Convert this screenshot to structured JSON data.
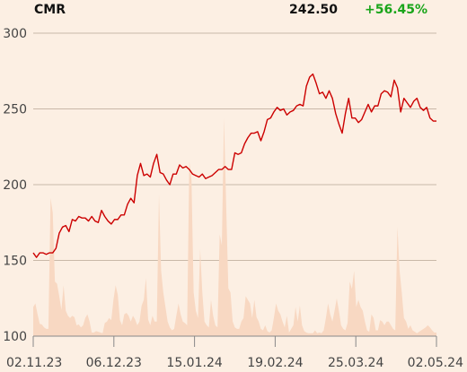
{
  "header": {
    "ticker": "CMR",
    "price": "242.50",
    "change": "+56.45%"
  },
  "colors": {
    "background": "#fcefe3",
    "line": "#cc0000",
    "volume": "#f8d8c2",
    "grid": "#c9b8a8",
    "change_positive": "#1aa51a"
  },
  "chart_data": {
    "type": "line",
    "title": "",
    "xlabel": "",
    "ylabel": "",
    "ylim": [
      100,
      300
    ],
    "yticks": [
      100,
      150,
      200,
      250,
      300
    ],
    "xticks": [
      "02.11.23",
      "06.12.23",
      "15.01.24",
      "19.02.24",
      "25.03.24",
      "02.05.24"
    ],
    "grid": "horizontal",
    "series": [
      {
        "values": [
          155,
          152,
          155,
          155,
          154,
          155,
          155,
          158,
          168,
          172,
          173,
          169,
          177,
          176,
          179,
          178,
          178,
          176,
          179,
          176,
          175,
          183,
          179,
          176,
          174,
          177,
          177,
          180,
          180,
          187,
          191,
          188,
          206,
          214,
          206,
          207,
          205,
          214,
          220,
          208,
          207,
          203,
          200,
          207,
          207,
          213,
          211,
          212,
          210,
          207,
          206,
          205,
          207,
          204,
          205,
          206,
          208,
          210,
          210,
          212,
          210,
          210,
          221,
          220,
          221,
          227,
          231,
          234,
          234,
          235,
          229,
          235,
          243,
          244,
          248,
          251,
          249,
          250,
          246,
          248,
          249,
          252,
          253,
          252,
          265,
          271,
          273,
          267,
          260,
          261,
          257,
          262,
          257,
          247,
          240,
          234,
          247,
          257,
          244,
          244,
          241,
          243,
          248,
          253,
          248,
          252,
          252,
          260,
          262,
          261,
          258,
          269,
          264,
          248,
          257,
          254,
          251,
          255,
          257,
          251,
          249,
          251,
          244,
          242,
          242
        ]
      }
    ],
    "volume": {
      "values": [
        40,
        45,
        30,
        17,
        16,
        12,
        10,
        10,
        190,
        170,
        75,
        72,
        55,
        36,
        70,
        35,
        28,
        25,
        28,
        26,
        15,
        16,
        12,
        15,
        25,
        30,
        20,
        5,
        5,
        7,
        6,
        5,
        4,
        18,
        20,
        25,
        22,
        50,
        70,
        57,
        22,
        15,
        30,
        32,
        28,
        20,
        28,
        23,
        15,
        20,
        42,
        50,
        80,
        23,
        15,
        28,
        20,
        20,
        195,
        90,
        60,
        40,
        20,
        12,
        8,
        10,
        28,
        45,
        30,
        20,
        18,
        15,
        240,
        215,
        60,
        35,
        25,
        120,
        60,
        20,
        15,
        12,
        50,
        28,
        15,
        12,
        140,
        125,
        300,
        180,
        66,
        60,
        20,
        12,
        10,
        10,
        20,
        25,
        55,
        50,
        45,
        25,
        50,
        26,
        20,
        10,
        8,
        15,
        7,
        5,
        8,
        25,
        45,
        35,
        30,
        20,
        12,
        28,
        5,
        10,
        15,
        40,
        20,
        42,
        15,
        7,
        5,
        4,
        4,
        4,
        8,
        4,
        5,
        4,
        8,
        25,
        45,
        30,
        20,
        35,
        52,
        35,
        15,
        10,
        8,
        18,
        75,
        65,
        90,
        40,
        50,
        40,
        35,
        20,
        8,
        6,
        30,
        25,
        8,
        8,
        22,
        20,
        15,
        20,
        20,
        15,
        10,
        8,
        150,
        90,
        60,
        25,
        20,
        10,
        15,
        8,
        6,
        4,
        6,
        8,
        10,
        12,
        15,
        12,
        8,
        5,
        5
      ]
    }
  }
}
